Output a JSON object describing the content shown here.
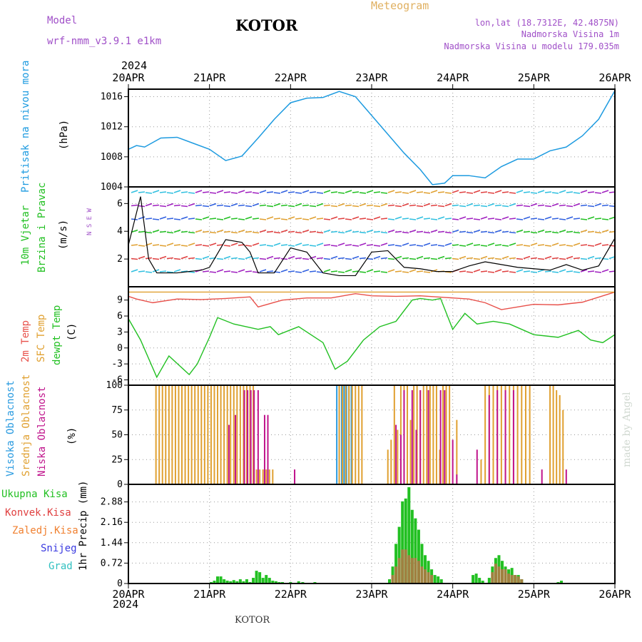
{
  "header": {
    "model_label": "Model",
    "model_name": "wrf-nmm_v3.9.1  e1km",
    "station": "KOTOR",
    "product": "Meteogram",
    "lonlat": "lon,lat (18.7312E, 42.4875N)",
    "elevation": "Nadmorska Visina 1m",
    "model_elevation": "Nadmorska Visina u modelu 179.035m",
    "footer_station": "KOTOR",
    "credit": "made by Angel"
  },
  "time_axis": {
    "year_top": "2024",
    "year_bottom": "2024",
    "ticks": [
      "20APR",
      "21APR",
      "22APR",
      "23APR",
      "24APR",
      "25APR",
      "26APR"
    ]
  },
  "panels": {
    "pressure": {
      "title": "Pritisak na nivou mora",
      "unit": "(hPa)"
    },
    "wind": {
      "title": "10m Vjetar",
      "subtitle": "Brzina i Pravac",
      "unit": "(m/s)",
      "compass": "N S E W"
    },
    "temp": {
      "title1": "2m Temp",
      "title2": "SFC Temp",
      "title3": "dewpt Temp",
      "unit": "(C)"
    },
    "cloud": {
      "title1": "Visoka Oblacnost",
      "title2": "Srednja Oblacnost",
      "title3": "Niska  Oblacnost",
      "unit": "(%)"
    },
    "precip": {
      "unit": "1hr Precip (mm)",
      "legend": [
        "Ukupna Kisa",
        "Konvek.Kisa",
        "Zaledj.Kisa",
        "Snijeg",
        "Grad"
      ]
    }
  },
  "colors": {
    "pressure": "#1e9be0",
    "temp2m": "#e8504a",
    "sfc": "#e0a030",
    "dewpt": "#22c022",
    "high_cloud": "#2a9be0",
    "mid_cloud": "#e0a030",
    "low_cloud": "#c0148c",
    "total_rain": "#22c022",
    "conv_rain": "#e04040",
    "frz_rain": "#f08030",
    "snow": "#3a3ae0",
    "hail": "#30c0c0"
  },
  "chart_data": [
    {
      "type": "line",
      "name": "pressure",
      "ylabel": "(hPa)",
      "ylim": [
        1004,
        1017
      ],
      "yticks": [
        1004,
        1008,
        1012,
        1016
      ],
      "x_days": [
        0,
        0.1,
        0.2,
        0.4,
        0.6,
        0.8,
        1.0,
        1.2,
        1.4,
        1.6,
        1.8,
        2.0,
        2.2,
        2.4,
        2.6,
        2.8,
        3.0,
        3.2,
        3.4,
        3.6,
        3.75,
        3.9,
        4.0,
        4.2,
        4.4,
        4.6,
        4.8,
        5.0,
        5.2,
        5.4,
        5.6,
        5.8,
        6.0
      ],
      "values": [
        1009.0,
        1009.5,
        1009.3,
        1010.5,
        1010.6,
        1009.8,
        1009.0,
        1007.5,
        1008.1,
        1010.5,
        1013.0,
        1015.2,
        1015.8,
        1015.9,
        1016.7,
        1016.0,
        1013.5,
        1011.0,
        1008.5,
        1006.3,
        1004.3,
        1004.5,
        1005.5,
        1005.5,
        1005.2,
        1006.7,
        1007.7,
        1007.7,
        1008.8,
        1009.3,
        1010.8,
        1013.0,
        1016.8
      ]
    },
    {
      "type": "line",
      "name": "wind",
      "ylabel": "(m/s)",
      "ylim": [
        0,
        7.2
      ],
      "yticks": [
        2,
        4,
        6
      ],
      "x_days": [
        0,
        0.15,
        0.25,
        0.35,
        0.6,
        0.9,
        1.0,
        1.2,
        1.4,
        1.5,
        1.6,
        1.8,
        2.0,
        2.2,
        2.4,
        2.6,
        2.8,
        3.0,
        3.2,
        3.4,
        3.6,
        3.8,
        4.0,
        4.2,
        4.4,
        4.6,
        4.8,
        5.0,
        5.2,
        5.4,
        5.6,
        5.8,
        6.0
      ],
      "values": [
        3.0,
        6.5,
        2.0,
        1.0,
        1.0,
        1.2,
        1.4,
        3.4,
        3.2,
        2.5,
        1.0,
        1.0,
        2.8,
        2.5,
        1.0,
        0.8,
        0.8,
        2.5,
        2.6,
        1.4,
        1.3,
        1.1,
        1.1,
        1.5,
        1.8,
        1.6,
        1.4,
        1.3,
        1.2,
        1.6,
        1.2,
        1.5,
        3.5
      ]
    },
    {
      "type": "line",
      "name": "temperature",
      "ylabel": "(C)",
      "ylim": [
        -7,
        11.5
      ],
      "yticks": [
        -6,
        -3,
        0,
        3,
        6,
        9
      ],
      "series": [
        {
          "name": "2m Temp",
          "x_days": [
            0,
            0.1,
            0.3,
            0.6,
            0.9,
            1.2,
            1.5,
            1.6,
            1.9,
            2.2,
            2.5,
            2.8,
            3.0,
            3.3,
            3.6,
            3.9,
            4.2,
            4.4,
            4.6,
            4.8,
            5.0,
            5.3,
            5.6,
            6.0
          ],
          "values": [
            9.7,
            9.2,
            8.5,
            9.2,
            9.1,
            9.3,
            9.6,
            7.7,
            9.0,
            9.4,
            9.4,
            10.2,
            9.8,
            9.7,
            9.8,
            9.5,
            9.2,
            8.5,
            7.2,
            7.7,
            8.2,
            8.1,
            8.6,
            10.5
          ]
        },
        {
          "name": "SFC Temp",
          "x_days": [
            0,
            6.0
          ],
          "values": [
            10.5,
            10.5
          ]
        },
        {
          "name": "dewpt Temp",
          "x_days": [
            0,
            0.15,
            0.35,
            0.5,
            0.75,
            0.85,
            1.0,
            1.1,
            1.3,
            1.6,
            1.75,
            1.85,
            2.1,
            2.4,
            2.55,
            2.7,
            2.9,
            3.1,
            3.3,
            3.5,
            3.6,
            3.75,
            3.85,
            4.0,
            4.15,
            4.3,
            4.5,
            4.7,
            4.85,
            5.0,
            5.3,
            5.55,
            5.7,
            5.85,
            6.0
          ],
          "values": [
            5.5,
            1.5,
            -5.5,
            -1.5,
            -5.0,
            -3.0,
            2.0,
            5.7,
            4.5,
            3.5,
            4.0,
            2.5,
            4.0,
            1.0,
            -4.0,
            -2.5,
            1.5,
            4.0,
            5.0,
            9.0,
            9.3,
            9.0,
            9.3,
            3.5,
            6.5,
            4.5,
            5.0,
            4.5,
            3.5,
            2.5,
            2.0,
            3.3,
            1.5,
            1.0,
            2.5
          ]
        }
      ]
    },
    {
      "type": "bar",
      "name": "cloud",
      "ylabel": "(%)",
      "ylim": [
        0,
        100
      ],
      "yticks": [
        0,
        25,
        50,
        75,
        100
      ],
      "series": [
        {
          "name": "Visoka Oblacnost",
          "x_days": [
            2.57,
            2.6,
            2.63,
            2.66,
            2.69,
            2.72,
            2.75
          ],
          "values": [
            100,
            100,
            100,
            100,
            100,
            100,
            100
          ]
        },
        {
          "name": "Srednja Oblacnost",
          "x_days": [
            0.34,
            0.38,
            0.42,
            0.46,
            0.5,
            0.54,
            0.58,
            0.62,
            0.66,
            0.7,
            0.74,
            0.78,
            0.82,
            0.86,
            0.9,
            0.94,
            0.98,
            1.02,
            1.06,
            1.1,
            1.14,
            1.18,
            1.22,
            1.26,
            1.3,
            1.34,
            1.38,
            1.42,
            1.46,
            1.5,
            1.54,
            1.58,
            1.62,
            1.66,
            1.7,
            1.74,
            1.78,
            2.6,
            2.64,
            2.68,
            2.72,
            2.76,
            2.8,
            2.84,
            2.88,
            3.2,
            3.24,
            3.28,
            3.32,
            3.36,
            3.4,
            3.44,
            3.48,
            3.52,
            3.56,
            3.6,
            3.64,
            3.68,
            3.72,
            3.76,
            3.8,
            3.84,
            3.88,
            3.92,
            3.96,
            4.05,
            4.35,
            4.4,
            4.45,
            4.5,
            4.55,
            4.6,
            4.65,
            4.7,
            4.75,
            4.8,
            4.85,
            4.9,
            4.95,
            5.2,
            5.24,
            5.28,
            5.32,
            5.36
          ],
          "values": [
            100,
            100,
            100,
            100,
            100,
            100,
            100,
            100,
            100,
            100,
            100,
            100,
            100,
            100,
            100,
            100,
            100,
            100,
            100,
            100,
            100,
            100,
            100,
            100,
            100,
            100,
            100,
            100,
            100,
            100,
            100,
            15,
            15,
            15,
            15,
            15,
            15,
            100,
            100,
            100,
            100,
            100,
            100,
            100,
            100,
            35,
            45,
            100,
            55,
            100,
            100,
            100,
            65,
            100,
            100,
            95,
            100,
            100,
            100,
            100,
            100,
            35,
            100,
            100,
            100,
            65,
            25,
            100,
            100,
            100,
            100,
            100,
            100,
            100,
            100,
            100,
            100,
            100,
            100,
            100,
            100,
            95,
            90,
            75
          ]
        },
        {
          "name": "Niska  Oblacnost",
          "x_days": [
            1.24,
            1.32,
            1.43,
            1.47,
            1.51,
            1.55,
            1.6,
            1.68,
            1.72,
            2.05,
            3.3,
            3.36,
            3.4,
            3.5,
            3.55,
            3.6,
            3.7,
            3.85,
            3.9,
            4.0,
            4.05,
            4.3,
            4.45,
            4.55,
            4.65,
            4.75,
            5.1,
            5.4
          ],
          "values": [
            60,
            70,
            95,
            95,
            95,
            95,
            95,
            70,
            70,
            15,
            60,
            50,
            95,
            95,
            55,
            95,
            95,
            95,
            95,
            45,
            10,
            35,
            90,
            95,
            95,
            95,
            15,
            15
          ]
        }
      ]
    },
    {
      "type": "bar",
      "name": "precip",
      "ylabel": "1hr Precip (mm)",
      "ylim": [
        0,
        3.5
      ],
      "yticks": [
        0,
        0.72,
        1.44,
        2.16,
        2.88
      ],
      "series": [
        {
          "name": "Ukupna Kisa",
          "x_days": [
            1.02,
            1.06,
            1.1,
            1.14,
            1.18,
            1.22,
            1.26,
            1.3,
            1.34,
            1.38,
            1.42,
            1.46,
            1.5,
            1.54,
            1.58,
            1.62,
            1.66,
            1.7,
            1.74,
            1.78,
            1.82,
            1.86,
            1.9,
            2.0,
            2.1,
            2.15,
            2.3,
            3.22,
            3.26,
            3.3,
            3.34,
            3.38,
            3.42,
            3.46,
            3.5,
            3.54,
            3.58,
            3.62,
            3.66,
            3.7,
            3.74,
            3.78,
            3.82,
            3.86,
            4.25,
            4.29,
            4.33,
            4.37,
            4.45,
            4.49,
            4.53,
            4.57,
            4.61,
            4.65,
            4.69,
            4.73,
            4.77,
            4.81,
            4.85,
            5.3,
            5.34
          ],
          "values": [
            0.05,
            0.1,
            0.25,
            0.25,
            0.15,
            0.1,
            0.08,
            0.12,
            0.08,
            0.15,
            0.08,
            0.15,
            0.05,
            0.2,
            0.45,
            0.4,
            0.2,
            0.3,
            0.2,
            0.1,
            0.08,
            0.05,
            0.05,
            0.05,
            0.08,
            0.05,
            0.05,
            0.15,
            0.6,
            1.4,
            2.0,
            2.9,
            3.0,
            3.4,
            2.6,
            2.3,
            1.9,
            1.4,
            1.0,
            0.8,
            0.5,
            0.3,
            0.25,
            0.15,
            0.3,
            0.35,
            0.2,
            0.1,
            0.2,
            0.6,
            0.9,
            1.0,
            0.8,
            0.6,
            0.5,
            0.55,
            0.3,
            0.3,
            0.15,
            0.05,
            0.1
          ]
        },
        {
          "name": "Konvek.Kisa",
          "x_days": [
            3.26,
            3.3,
            3.34,
            3.38,
            3.42,
            3.46,
            3.5,
            3.54,
            3.58,
            3.62,
            3.66,
            3.7,
            3.74,
            4.49,
            4.53,
            4.57,
            4.61,
            4.65,
            4.69,
            4.73,
            4.77,
            4.81,
            4.85
          ],
          "values": [
            0.3,
            0.6,
            0.9,
            1.2,
            1.2,
            1.0,
            0.9,
            0.9,
            0.8,
            0.6,
            0.5,
            0.4,
            0.3,
            0.4,
            0.7,
            0.6,
            0.5,
            0.5,
            0.35,
            0.3,
            0.3,
            0.25,
            0.15
          ]
        }
      ]
    }
  ]
}
